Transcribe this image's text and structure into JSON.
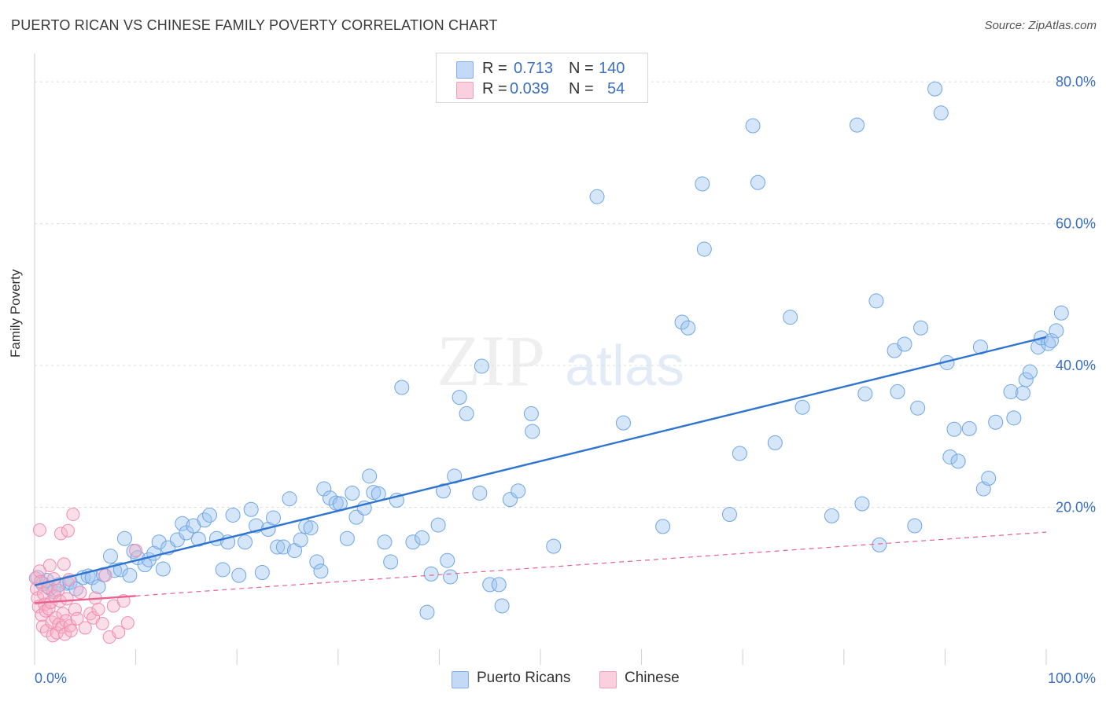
{
  "title": "PUERTO RICAN VS CHINESE FAMILY POVERTY CORRELATION CHART",
  "source": "Source: ZipAtlas.com",
  "watermark": {
    "zip": "ZIP",
    "atlas": "atlas"
  },
  "legend_top": {
    "rows": [
      {
        "r_label": "R =",
        "r_value": "0.713",
        "n_label": "N =",
        "n_value": "140",
        "color": "#9ec3f0"
      },
      {
        "r_label": "R =",
        "r_value": "0.039",
        "n_label": "N =",
        "n_value": "54",
        "color": "#f5b3c8"
      }
    ]
  },
  "legend_bottom": {
    "items": [
      {
        "label": "Puerto Ricans",
        "color": "#9ec3f0"
      },
      {
        "label": "Chinese",
        "color": "#f5b3c8"
      }
    ]
  },
  "chart_data": {
    "type": "scatter",
    "title": "PUERTO RICAN VS CHINESE FAMILY POVERTY CORRELATION CHART",
    "xlabel": "",
    "ylabel": "Family Poverty",
    "xlim": [
      0,
      100
    ],
    "ylim": [
      0,
      84
    ],
    "x_tick_labels": [
      "0.0%",
      "100.0%"
    ],
    "y_ticks": [
      20,
      40,
      60,
      80
    ],
    "y_tick_labels": [
      "20.0%",
      "40.0%",
      "60.0%",
      "80.0%"
    ],
    "grid": true,
    "series": [
      {
        "name": "Puerto Ricans",
        "color": "#6ea6e6",
        "trend": {
          "x": [
            0,
            100
          ],
          "y": [
            9.0,
            44.0
          ],
          "style": "solid",
          "color": "#2f74d0"
        },
        "points": [
          [
            0.3,
            10.1
          ],
          [
            0.8,
            9.2
          ],
          [
            1.2,
            9.7
          ],
          [
            1.5,
            8.6
          ],
          [
            1.9,
            8.1
          ],
          [
            2.4,
            9.1
          ],
          [
            3.2,
            9.3
          ],
          [
            3.5,
            9.4
          ],
          [
            4.1,
            8.5
          ],
          [
            4.8,
            10.1
          ],
          [
            5.3,
            10.3
          ],
          [
            5.7,
            10.1
          ],
          [
            6.3,
            8.8
          ],
          [
            6.8,
            10.5
          ],
          [
            7.5,
            13.1
          ],
          [
            7.9,
            11.1
          ],
          [
            8.5,
            11.2
          ],
          [
            8.9,
            15.6
          ],
          [
            9.4,
            10.4
          ],
          [
            9.8,
            13.8
          ],
          [
            10.2,
            12.9
          ],
          [
            10.9,
            11.9
          ],
          [
            11.3,
            12.6
          ],
          [
            11.8,
            13.5
          ],
          [
            12.3,
            15.1
          ],
          [
            12.7,
            11.3
          ],
          [
            13.2,
            14.3
          ],
          [
            14.1,
            15.4
          ],
          [
            14.6,
            17.7
          ],
          [
            15.0,
            16.4
          ],
          [
            15.7,
            17.4
          ],
          [
            16.2,
            15.5
          ],
          [
            16.8,
            18.2
          ],
          [
            17.3,
            18.9
          ],
          [
            18.0,
            15.6
          ],
          [
            18.6,
            11.2
          ],
          [
            19.1,
            15.1
          ],
          [
            19.6,
            18.9
          ],
          [
            20.2,
            10.4
          ],
          [
            20.8,
            15.1
          ],
          [
            21.4,
            19.7
          ],
          [
            21.9,
            17.4
          ],
          [
            22.5,
            10.8
          ],
          [
            23.1,
            16.9
          ],
          [
            23.6,
            18.5
          ],
          [
            24.0,
            14.4
          ],
          [
            24.6,
            14.4
          ],
          [
            25.2,
            21.2
          ],
          [
            25.7,
            13.9
          ],
          [
            26.3,
            15.4
          ],
          [
            26.8,
            17.3
          ],
          [
            27.3,
            17.1
          ],
          [
            27.9,
            12.3
          ],
          [
            28.3,
            11.0
          ],
          [
            28.6,
            22.6
          ],
          [
            29.2,
            21.3
          ],
          [
            29.8,
            20.6
          ],
          [
            30.2,
            20.5
          ],
          [
            30.9,
            15.6
          ],
          [
            31.4,
            22.0
          ],
          [
            31.8,
            18.6
          ],
          [
            32.6,
            19.9
          ],
          [
            33.1,
            24.4
          ],
          [
            33.5,
            22.1
          ],
          [
            34.0,
            21.9
          ],
          [
            34.6,
            15.1
          ],
          [
            35.2,
            12.3
          ],
          [
            35.8,
            21.0
          ],
          [
            36.3,
            36.9
          ],
          [
            37.4,
            15.1
          ],
          [
            38.3,
            15.7
          ],
          [
            38.8,
            5.2
          ],
          [
            39.2,
            10.6
          ],
          [
            39.9,
            17.5
          ],
          [
            40.4,
            22.3
          ],
          [
            40.8,
            12.5
          ],
          [
            41.1,
            10.2
          ],
          [
            41.5,
            24.4
          ],
          [
            42.0,
            35.5
          ],
          [
            42.7,
            33.2
          ],
          [
            44.0,
            22.0
          ],
          [
            44.2,
            39.9
          ],
          [
            45.0,
            9.1
          ],
          [
            45.9,
            9.1
          ],
          [
            46.2,
            6.1
          ],
          [
            47.0,
            21.1
          ],
          [
            47.8,
            22.3
          ],
          [
            49.1,
            33.2
          ],
          [
            49.2,
            30.7
          ],
          [
            51.3,
            14.5
          ],
          [
            55.6,
            63.8
          ],
          [
            58.2,
            31.9
          ],
          [
            62.1,
            17.3
          ],
          [
            64.0,
            46.1
          ],
          [
            64.6,
            45.3
          ],
          [
            66.0,
            65.6
          ],
          [
            66.2,
            56.4
          ],
          [
            68.7,
            19.0
          ],
          [
            69.7,
            27.6
          ],
          [
            71.0,
            73.8
          ],
          [
            71.5,
            65.8
          ],
          [
            73.2,
            29.1
          ],
          [
            74.7,
            46.8
          ],
          [
            75.9,
            34.1
          ],
          [
            78.8,
            18.8
          ],
          [
            81.3,
            73.9
          ],
          [
            81.8,
            20.5
          ],
          [
            82.1,
            36.0
          ],
          [
            83.2,
            49.1
          ],
          [
            83.5,
            14.7
          ],
          [
            85.0,
            42.1
          ],
          [
            85.3,
            36.3
          ],
          [
            86.0,
            43.0
          ],
          [
            87.0,
            17.4
          ],
          [
            87.3,
            34.0
          ],
          [
            87.6,
            45.3
          ],
          [
            89.0,
            79.0
          ],
          [
            89.6,
            75.6
          ],
          [
            90.2,
            40.4
          ],
          [
            90.5,
            27.1
          ],
          [
            90.9,
            31.0
          ],
          [
            91.3,
            26.5
          ],
          [
            92.4,
            31.1
          ],
          [
            93.5,
            42.6
          ],
          [
            93.8,
            22.6
          ],
          [
            94.3,
            24.1
          ],
          [
            95.0,
            32.0
          ],
          [
            96.5,
            36.3
          ],
          [
            96.8,
            32.6
          ],
          [
            97.7,
            36.1
          ],
          [
            98.0,
            38.0
          ],
          [
            98.4,
            39.1
          ],
          [
            99.2,
            42.6
          ],
          [
            99.5,
            43.9
          ],
          [
            100.2,
            43.1
          ],
          [
            100.5,
            43.5
          ],
          [
            101.0,
            44.9
          ],
          [
            101.5,
            47.4
          ]
        ]
      },
      {
        "name": "Chinese",
        "color": "#f08cb0",
        "trend": {
          "x": [
            0,
            10
          ],
          "y": [
            6.5,
            7.5
          ],
          "style": "solid",
          "color": "#e8618f",
          "extension": {
            "x": [
              10,
              100
            ],
            "y": [
              7.5,
              16.5
            ],
            "style": "dashed"
          }
        },
        "points": [
          [
            0.1,
            10.0
          ],
          [
            0.2,
            8.5
          ],
          [
            0.3,
            7.2
          ],
          [
            0.4,
            6.0
          ],
          [
            0.5,
            16.8
          ],
          [
            0.5,
            11.0
          ],
          [
            0.6,
            9.5
          ],
          [
            0.7,
            4.8
          ],
          [
            0.8,
            3.2
          ],
          [
            0.9,
            7.8
          ],
          [
            1.0,
            6.3
          ],
          [
            1.1,
            5.4
          ],
          [
            1.2,
            2.6
          ],
          [
            1.3,
            8.7
          ],
          [
            1.4,
            5.7
          ],
          [
            1.5,
            11.8
          ],
          [
            1.6,
            6.6
          ],
          [
            1.7,
            3.8
          ],
          [
            1.8,
            1.9
          ],
          [
            1.9,
            9.9
          ],
          [
            2.0,
            7.5
          ],
          [
            2.1,
            4.4
          ],
          [
            2.2,
            2.3
          ],
          [
            2.3,
            8.3
          ],
          [
            2.4,
            3.5
          ],
          [
            2.5,
            6.8
          ],
          [
            2.6,
            16.3
          ],
          [
            2.7,
            3.1
          ],
          [
            2.8,
            5.0
          ],
          [
            2.9,
            12.0
          ],
          [
            3.0,
            2.1
          ],
          [
            3.1,
            4.0
          ],
          [
            3.2,
            7.1
          ],
          [
            3.3,
            16.7
          ],
          [
            3.4,
            9.8
          ],
          [
            3.5,
            3.3
          ],
          [
            3.6,
            2.6
          ],
          [
            3.8,
            19.0
          ],
          [
            4.0,
            5.6
          ],
          [
            4.2,
            4.3
          ],
          [
            4.5,
            8.0
          ],
          [
            5.0,
            3.0
          ],
          [
            5.5,
            5.0
          ],
          [
            5.8,
            4.4
          ],
          [
            6.0,
            7.2
          ],
          [
            6.3,
            5.6
          ],
          [
            6.7,
            3.6
          ],
          [
            7.0,
            10.4
          ],
          [
            7.4,
            1.7
          ],
          [
            7.8,
            6.1
          ],
          [
            8.3,
            2.4
          ],
          [
            8.8,
            6.8
          ],
          [
            9.2,
            3.7
          ],
          [
            10.0,
            13.9
          ]
        ]
      }
    ]
  }
}
